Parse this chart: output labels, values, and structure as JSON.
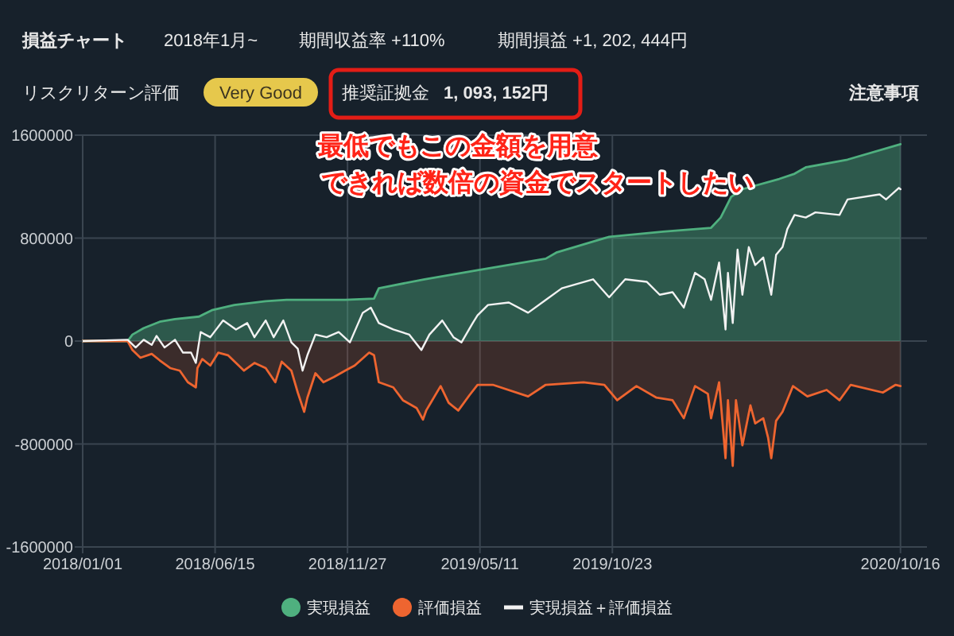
{
  "chart_data": {
    "type": "area",
    "title": "損益チャート",
    "annotations": [
      "2018年1月~",
      "期間収益率 +110%",
      "期間損益 +1, 202, 444円",
      "リスクリターン評価",
      "Very Good",
      "推奨証拠金",
      "1, 093, 152円",
      "注意事項",
      "最低でもこの金額を用意",
      "できれば数倍の資金でスタートしたい"
    ],
    "xlim": [
      "2018-01-01",
      "2020-11-18"
    ],
    "xticks": [
      {
        "value": "2018-01-01",
        "label": "2018/01/01"
      },
      {
        "value": "2018-06-15",
        "label": "2018/06/15"
      },
      {
        "value": "2018-11-27",
        "label": "2018/11/27"
      },
      {
        "value": "2019-05-11",
        "label": "2019/05/11"
      },
      {
        "value": "2019-10-23",
        "label": "2019/10/23"
      },
      {
        "value": "2020-10-16",
        "label": "2020/10/16"
      }
    ],
    "ylim": [
      -1600000,
      1600000
    ],
    "yticks": [
      -1600000,
      -800000,
      0,
      800000,
      1600000
    ],
    "grid": true,
    "legend": "bottom",
    "series": [
      {
        "name": "実現損益",
        "color": "#4fb07f",
        "x": [
          "2018-01-01",
          "2018-02-26",
          "2018-03-04",
          "2018-03-18",
          "2018-04-07",
          "2018-04-26",
          "2018-05-26",
          "2018-06-11",
          "2018-07-09",
          "2018-08-17",
          "2018-09-12",
          "2018-11-24",
          "2018-12-30",
          "2019-01-05",
          "2019-03-03",
          "2019-05-08",
          "2019-08-01",
          "2019-08-15",
          "2019-10-19",
          "2019-12-25",
          "2020-02-23",
          "2020-03-06",
          "2020-03-19",
          "2020-04-02",
          "2020-05-18",
          "2020-06-06",
          "2020-06-20",
          "2020-08-11",
          "2020-10-16"
        ],
        "values": [
          0,
          0,
          50000,
          100000,
          150000,
          170000,
          190000,
          240000,
          280000,
          310000,
          320000,
          320000,
          330000,
          410000,
          480000,
          550000,
          640000,
          690000,
          810000,
          850000,
          880000,
          960000,
          1120000,
          1180000,
          1260000,
          1300000,
          1350000,
          1410000,
          1530000
        ]
      },
      {
        "name": "評価損益",
        "color": "#ee6530",
        "x": [
          "2018-01-01",
          "2018-02-26",
          "2018-03-04",
          "2018-03-14",
          "2018-03-28",
          "2018-04-07",
          "2018-04-20",
          "2018-05-02",
          "2018-05-12",
          "2018-05-22",
          "2018-05-24",
          "2018-05-30",
          "2018-06-09",
          "2018-06-19",
          "2018-07-01",
          "2018-07-21",
          "2018-08-03",
          "2018-08-17",
          "2018-08-29",
          "2018-09-06",
          "2018-09-18",
          "2018-09-26",
          "2018-10-04",
          "2018-10-08",
          "2018-10-18",
          "2018-10-28",
          "2018-11-10",
          "2018-11-24",
          "2018-12-06",
          "2018-12-24",
          "2018-12-30",
          "2019-01-05",
          "2019-01-23",
          "2019-02-04",
          "2019-02-21",
          "2019-03-01",
          "2019-03-05",
          "2019-03-23",
          "2019-04-02",
          "2019-04-14",
          "2019-04-28",
          "2019-05-08",
          "2019-05-27",
          "2019-07-10",
          "2019-08-01",
          "2019-09-17",
          "2019-10-13",
          "2019-10-29",
          "2019-11-22",
          "2019-12-17",
          "2020-01-06",
          "2020-01-20",
          "2020-02-03",
          "2020-02-19",
          "2020-02-23",
          "2020-03-04",
          "2020-03-12",
          "2020-03-15",
          "2020-03-21",
          "2020-03-25",
          "2020-04-02",
          "2020-04-12",
          "2020-04-18",
          "2020-04-28",
          "2020-05-04",
          "2020-05-08",
          "2020-05-14",
          "2020-05-22",
          "2020-06-04",
          "2020-06-22",
          "2020-07-16",
          "2020-08-01",
          "2020-08-15",
          "2020-09-24",
          "2020-10-10",
          "2020-10-16"
        ],
        "values": [
          0,
          0,
          -70000,
          -130000,
          -100000,
          -150000,
          -210000,
          -230000,
          -320000,
          -360000,
          -210000,
          -140000,
          -190000,
          -90000,
          -110000,
          -230000,
          -170000,
          -210000,
          -320000,
          -160000,
          -230000,
          -400000,
          -550000,
          -440000,
          -250000,
          -320000,
          -280000,
          -230000,
          -190000,
          -90000,
          -110000,
          -320000,
          -360000,
          -460000,
          -520000,
          -610000,
          -540000,
          -350000,
          -480000,
          -540000,
          -420000,
          -340000,
          -340000,
          -430000,
          -340000,
          -320000,
          -340000,
          -460000,
          -350000,
          -440000,
          -460000,
          -600000,
          -350000,
          -410000,
          -600000,
          -320000,
          -910000,
          -460000,
          -970000,
          -460000,
          -810000,
          -500000,
          -640000,
          -600000,
          -750000,
          -910000,
          -620000,
          -550000,
          -350000,
          -430000,
          -380000,
          -460000,
          -340000,
          -400000,
          -340000,
          -350000
        ]
      },
      {
        "name": "実現損益＋評価損益",
        "type": "line",
        "color": "#f2f2f2",
        "x": [
          "2018-01-01",
          "2018-02-26",
          "2018-03-08",
          "2018-03-18",
          "2018-03-28",
          "2018-04-03",
          "2018-04-13",
          "2018-04-26",
          "2018-05-06",
          "2018-05-16",
          "2018-05-22",
          "2018-05-28",
          "2018-06-09",
          "2018-06-25",
          "2018-07-11",
          "2018-07-25",
          "2018-08-03",
          "2018-08-17",
          "2018-08-27",
          "2018-09-08",
          "2018-09-18",
          "2018-09-26",
          "2018-10-02",
          "2018-10-08",
          "2018-10-18",
          "2018-11-01",
          "2018-11-16",
          "2018-11-30",
          "2018-12-16",
          "2018-12-26",
          "2019-01-05",
          "2019-01-23",
          "2019-02-12",
          "2019-02-27",
          "2019-03-09",
          "2019-03-25",
          "2019-04-08",
          "2019-04-18",
          "2019-05-02",
          "2019-05-08",
          "2019-05-21",
          "2019-06-16",
          "2019-07-10",
          "2019-08-01",
          "2019-08-21",
          "2019-09-29",
          "2019-10-19",
          "2019-11-08",
          "2019-12-05",
          "2019-12-21",
          "2020-01-06",
          "2020-01-20",
          "2020-02-03",
          "2020-02-15",
          "2020-02-23",
          "2020-03-04",
          "2020-03-12",
          "2020-03-15",
          "2020-03-21",
          "2020-03-27",
          "2020-04-02",
          "2020-04-10",
          "2020-04-18",
          "2020-04-28",
          "2020-05-08",
          "2020-05-14",
          "2020-05-22",
          "2020-05-28",
          "2020-06-06",
          "2020-06-20",
          "2020-07-02",
          "2020-08-01",
          "2020-08-11",
          "2020-09-20",
          "2020-09-28",
          "2020-10-14",
          "2020-10-16"
        ],
        "values": [
          0,
          10000,
          -50000,
          10000,
          -30000,
          40000,
          -50000,
          10000,
          -90000,
          -90000,
          -170000,
          70000,
          30000,
          160000,
          90000,
          140000,
          30000,
          160000,
          30000,
          160000,
          -10000,
          -60000,
          -230000,
          -110000,
          50000,
          30000,
          70000,
          -10000,
          220000,
          260000,
          140000,
          90000,
          50000,
          -70000,
          50000,
          160000,
          30000,
          -10000,
          140000,
          200000,
          280000,
          300000,
          220000,
          320000,
          410000,
          480000,
          340000,
          480000,
          460000,
          360000,
          380000,
          260000,
          530000,
          480000,
          320000,
          610000,
          90000,
          530000,
          140000,
          710000,
          360000,
          730000,
          590000,
          650000,
          360000,
          670000,
          730000,
          870000,
          980000,
          960000,
          1000000,
          980000,
          1100000,
          1140000,
          1100000,
          1190000,
          1180000
        ]
      }
    ]
  }
}
